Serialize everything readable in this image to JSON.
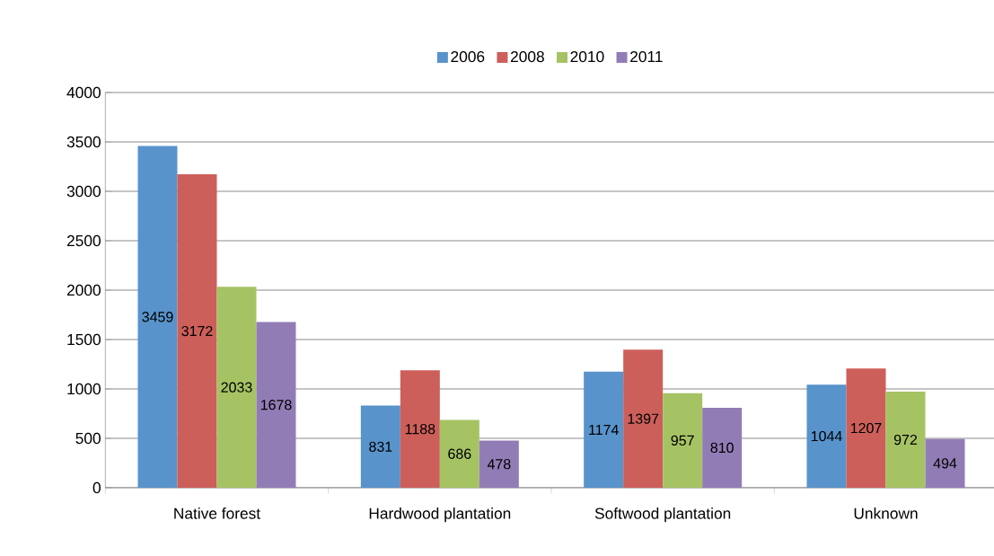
{
  "chart_data": {
    "type": "bar",
    "categories": [
      "Native forest",
      "Hardwood plantation",
      "Softwood plantation",
      "Unknown"
    ],
    "series": [
      {
        "name": "2006",
        "color": "#5893cb",
        "values": [
          3459,
          831,
          1174,
          1044
        ]
      },
      {
        "name": "2008",
        "color": "#cd5f5a",
        "values": [
          3172,
          1188,
          1397,
          1207
        ]
      },
      {
        "name": "2010",
        "color": "#a6c364",
        "values": [
          2033,
          686,
          957,
          972
        ]
      },
      {
        "name": "2011",
        "color": "#927cb6",
        "values": [
          1678,
          478,
          810,
          494
        ]
      }
    ],
    "ylim": [
      0,
      4000
    ],
    "yticks": [
      0,
      500,
      1000,
      1500,
      2000,
      2500,
      3000,
      3500,
      4000
    ],
    "grid": "y",
    "legend": "top",
    "data_labels": true
  }
}
